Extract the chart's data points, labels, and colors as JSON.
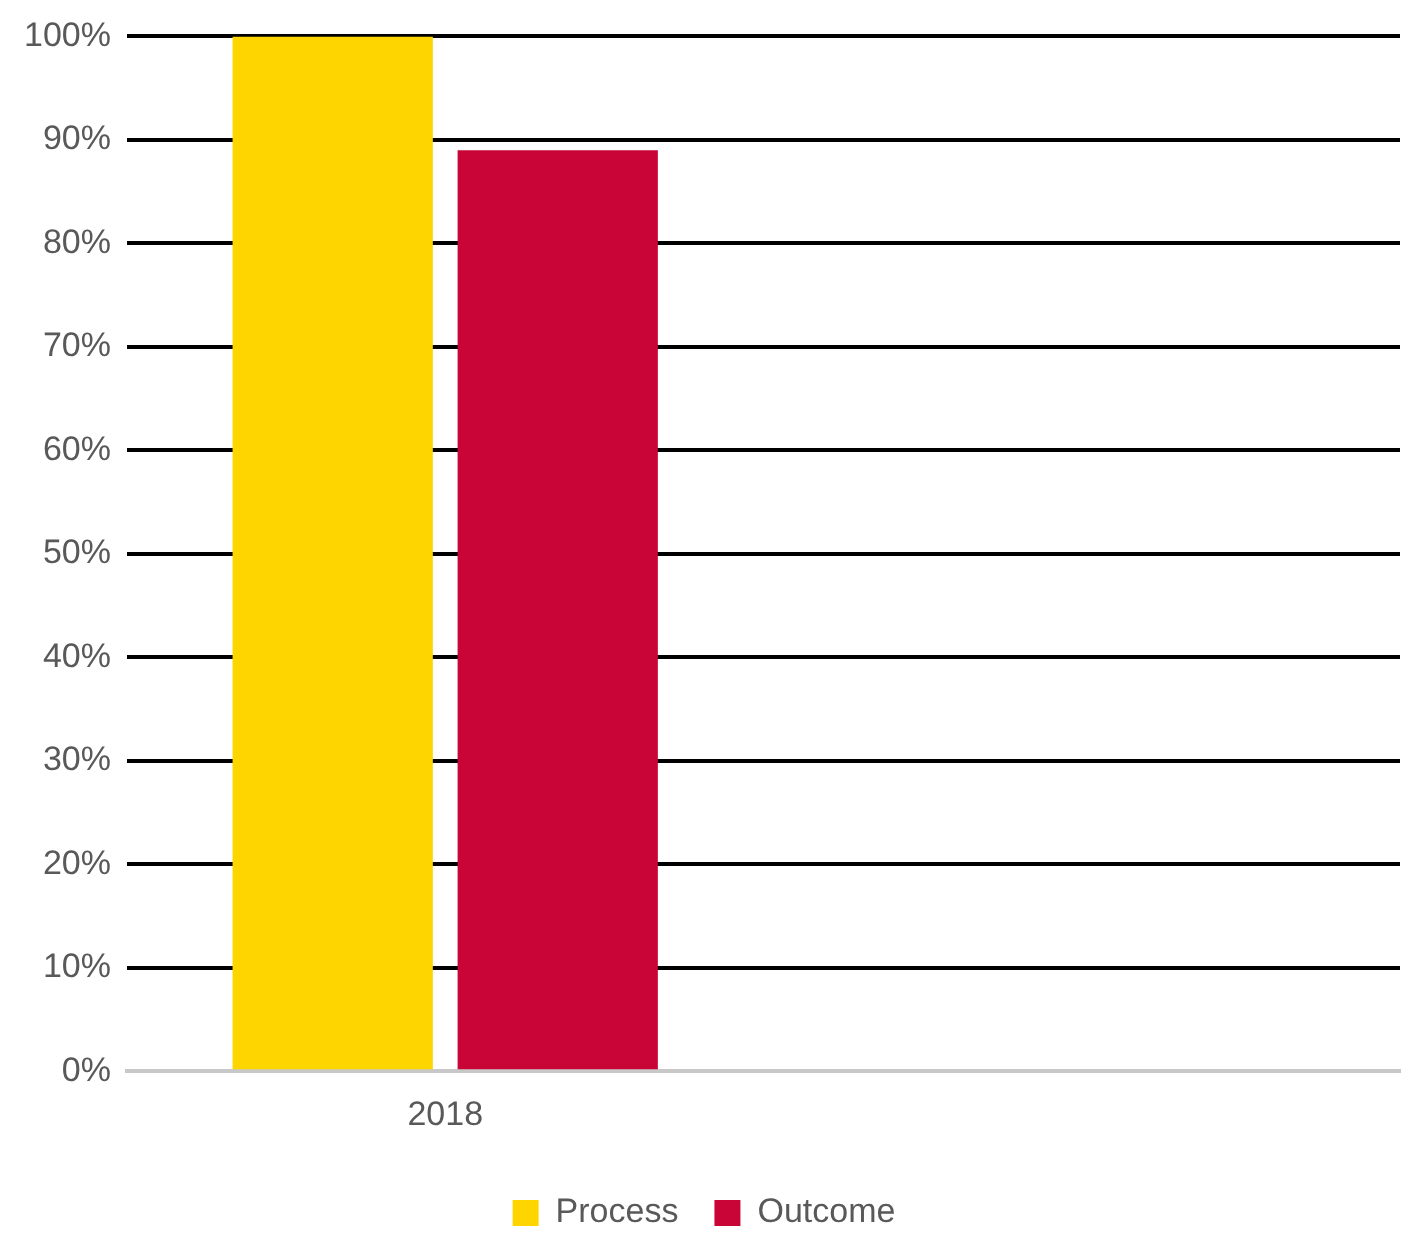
{
  "chart_data": {
    "type": "bar",
    "categories": [
      "2018",
      null
    ],
    "series": [
      {
        "name": "Process",
        "color": "#ffd500",
        "values": [
          100,
          null
        ]
      },
      {
        "name": "Outcome",
        "color": "#c90537",
        "values": [
          89,
          null
        ]
      }
    ],
    "ylim": [
      0,
      100
    ],
    "yticks": [
      {
        "value": 0,
        "label": "0%"
      },
      {
        "value": 10,
        "label": "10%"
      },
      {
        "value": 20,
        "label": "20%"
      },
      {
        "value": 30,
        "label": "30%"
      },
      {
        "value": 40,
        "label": "40%"
      },
      {
        "value": 50,
        "label": "50%"
      },
      {
        "value": 60,
        "label": "60%"
      },
      {
        "value": 70,
        "label": "70%"
      },
      {
        "value": 80,
        "label": "80%"
      },
      {
        "value": 90,
        "label": "90%"
      },
      {
        "value": 100,
        "label": "100%"
      }
    ],
    "grid": "y",
    "legend": "bottom"
  }
}
